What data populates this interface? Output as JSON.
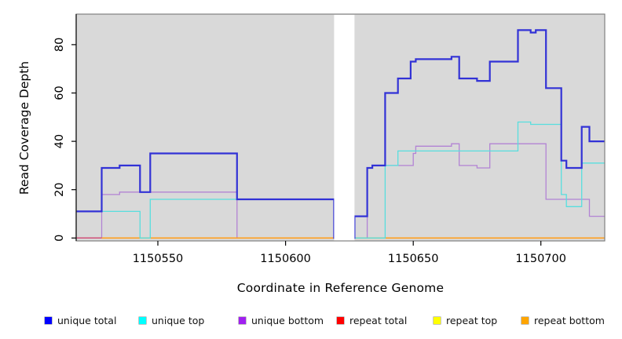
{
  "figure": {
    "x_axis_title": "Coordinate in Reference Genome",
    "y_axis_title": "Read Coverage Depth"
  },
  "chart_data": {
    "type": "line",
    "subtype": "step-coverage-plot",
    "title": "",
    "xlabel": "Coordinate in Reference Genome",
    "ylabel": "Read Coverage Depth",
    "xlim": [
      1150518,
      1150725
    ],
    "ylim": [
      0,
      92
    ],
    "x_ticks": [
      1150550,
      1150600,
      1150650,
      1150700
    ],
    "x_tick_labels": [
      "1150550",
      "1150600",
      "1150650",
      "1150700"
    ],
    "y_ticks": [
      0,
      20,
      40,
      60,
      80
    ],
    "y_tick_labels": [
      "0",
      "20",
      "40",
      "60",
      "80"
    ],
    "grid": false,
    "panel_background": "#d9d9d9",
    "panel_border_color": "#808080",
    "gap_region": {
      "x_start": 1150619,
      "x_end": 1150627,
      "fill": "#ffffff",
      "note": "white band with no data"
    },
    "legend_position": "bottom",
    "series": [
      {
        "name": "unique total",
        "legend_color": "#0000ff",
        "line_color": "#3232d6",
        "line_width": 2.2,
        "steps": [
          [
            1150518,
            11
          ],
          [
            1150528,
            29
          ],
          [
            1150535,
            30
          ],
          [
            1150543,
            19
          ],
          [
            1150547,
            35
          ],
          [
            1150581,
            16
          ],
          [
            1150619,
            0
          ],
          [
            1150627,
            9
          ],
          [
            1150632,
            29
          ],
          [
            1150634,
            30
          ],
          [
            1150639,
            60
          ],
          [
            1150644,
            66
          ],
          [
            1150649,
            73
          ],
          [
            1150651,
            74
          ],
          [
            1150665,
            75
          ],
          [
            1150668,
            66
          ],
          [
            1150675,
            65
          ],
          [
            1150680,
            73
          ],
          [
            1150691,
            86
          ],
          [
            1150696,
            85
          ],
          [
            1150698,
            86
          ],
          [
            1150702,
            62
          ],
          [
            1150708,
            32
          ],
          [
            1150710,
            29
          ],
          [
            1150716,
            46
          ],
          [
            1150719,
            40
          ]
        ],
        "end_x": 1150725
      },
      {
        "name": "unique top",
        "legend_color": "#00ffff",
        "line_color": "#58dede",
        "line_width": 1.3,
        "steps": [
          [
            1150518,
            11
          ],
          [
            1150543,
            0
          ],
          [
            1150547,
            16
          ],
          [
            1150619,
            0
          ],
          [
            1150639,
            30
          ],
          [
            1150644,
            36
          ],
          [
            1150691,
            48
          ],
          [
            1150696,
            47
          ],
          [
            1150708,
            18
          ],
          [
            1150710,
            13
          ],
          [
            1150716,
            31
          ]
        ],
        "end_x": 1150725
      },
      {
        "name": "unique bottom",
        "legend_color": "#a020f0",
        "line_color": "#b283d4",
        "line_width": 1.3,
        "steps": [
          [
            1150518,
            0
          ],
          [
            1150528,
            18
          ],
          [
            1150535,
            19
          ],
          [
            1150581,
            0
          ],
          [
            1150632,
            29
          ],
          [
            1150634,
            30
          ],
          [
            1150650,
            35
          ],
          [
            1150651,
            38
          ],
          [
            1150665,
            39
          ],
          [
            1150668,
            30
          ],
          [
            1150675,
            29
          ],
          [
            1150680,
            39
          ],
          [
            1150702,
            16
          ],
          [
            1150719,
            9
          ]
        ],
        "end_x": 1150725
      },
      {
        "name": "repeat total",
        "legend_color": "#ff0000",
        "line_color": "#d04f78",
        "line_width": 1.5,
        "steps": [
          [
            1150518,
            0
          ]
        ],
        "end_x": 1150725
      },
      {
        "name": "repeat top",
        "legend_color": "#ffff00",
        "line_color": "#ffff00",
        "line_width": 1.0,
        "steps": [
          [
            1150518,
            0
          ]
        ],
        "end_x": 1150725
      },
      {
        "name": "repeat bottom",
        "legend_color": "#ffa500",
        "line_color": "#ff9e1f",
        "line_width": 1.6,
        "steps": [
          [
            1150528,
            0
          ]
        ],
        "end_x": 1150725
      }
    ]
  }
}
